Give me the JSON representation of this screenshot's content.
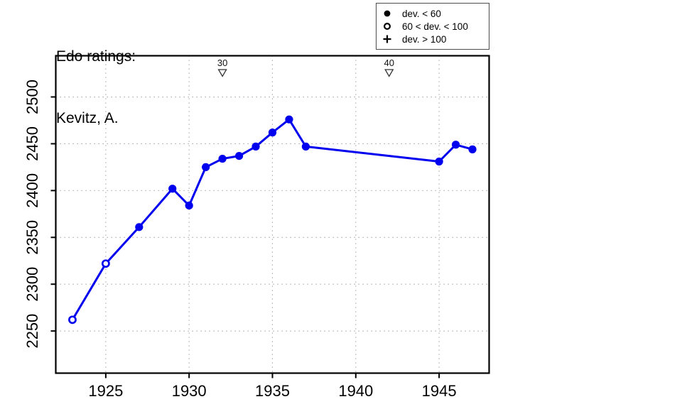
{
  "title": {
    "line1": "Edo ratings:",
    "line2": "Kevitz, A."
  },
  "legend": {
    "items": [
      {
        "symbol": "filled-circle",
        "label": "dev. < 60"
      },
      {
        "symbol": "open-circle",
        "label": "60 < dev. < 100"
      },
      {
        "symbol": "plus",
        "label": "dev. > 100"
      }
    ]
  },
  "colors": {
    "line": "#0000ee",
    "marker_fill": "#0000ee",
    "open_marker_fill": "#ffffff",
    "grid": "#999999",
    "axis": "#000000",
    "age_marker_stroke": "#333333",
    "background": "#ffffff"
  },
  "chart_data": {
    "type": "line",
    "title": "Edo ratings: Kevitz, A.",
    "xlabel": "",
    "ylabel": "",
    "xlim": [
      1922,
      1948
    ],
    "ylim": [
      2205,
      2544
    ],
    "grid": true,
    "x_ticks": [
      "1925",
      "1930",
      "1935",
      "1940",
      "1945"
    ],
    "x_tick_values": [
      1925,
      1930,
      1935,
      1940,
      1945
    ],
    "y_ticks": [
      "2250",
      "2300",
      "2350",
      "2400",
      "2450",
      "2500"
    ],
    "y_tick_values": [
      2250,
      2300,
      2350,
      2400,
      2450,
      2500
    ],
    "legend_position": "top-right-outside",
    "series": [
      {
        "name": "Edo rating",
        "points": [
          {
            "year": 1923,
            "rating": 2262,
            "marker": "open-circle",
            "dev_class": "60 < dev. < 100"
          },
          {
            "year": 1925,
            "rating": 2322,
            "marker": "open-circle",
            "dev_class": "60 < dev. < 100"
          },
          {
            "year": 1927,
            "rating": 2361,
            "marker": "filled-circle",
            "dev_class": "dev. < 60"
          },
          {
            "year": 1929,
            "rating": 2402,
            "marker": "filled-circle",
            "dev_class": "dev. < 60"
          },
          {
            "year": 1930,
            "rating": 2384,
            "marker": "filled-circle",
            "dev_class": "dev. < 60"
          },
          {
            "year": 1931,
            "rating": 2425,
            "marker": "filled-circle",
            "dev_class": "dev. < 60"
          },
          {
            "year": 1932,
            "rating": 2434,
            "marker": "filled-circle",
            "dev_class": "dev. < 60"
          },
          {
            "year": 1933,
            "rating": 2437,
            "marker": "filled-circle",
            "dev_class": "dev. < 60"
          },
          {
            "year": 1934,
            "rating": 2447,
            "marker": "filled-circle",
            "dev_class": "dev. < 60"
          },
          {
            "year": 1935,
            "rating": 2462,
            "marker": "filled-circle",
            "dev_class": "dev. < 60"
          },
          {
            "year": 1936,
            "rating": 2476,
            "marker": "filled-circle",
            "dev_class": "dev. < 60"
          },
          {
            "year": 1937,
            "rating": 2447,
            "marker": "filled-circle",
            "dev_class": "dev. < 60"
          },
          {
            "year": 1945,
            "rating": 2431,
            "marker": "filled-circle",
            "dev_class": "dev. < 60"
          },
          {
            "year": 1946,
            "rating": 2449,
            "marker": "filled-circle",
            "dev_class": "dev. < 60"
          },
          {
            "year": 1947,
            "rating": 2444,
            "marker": "filled-circle",
            "dev_class": "dev. < 60"
          }
        ]
      }
    ],
    "age_markers": [
      {
        "year": 1932,
        "label": "30",
        "symbol": "open-down-triangle"
      },
      {
        "year": 1942,
        "label": "40",
        "symbol": "open-down-triangle"
      }
    ]
  }
}
